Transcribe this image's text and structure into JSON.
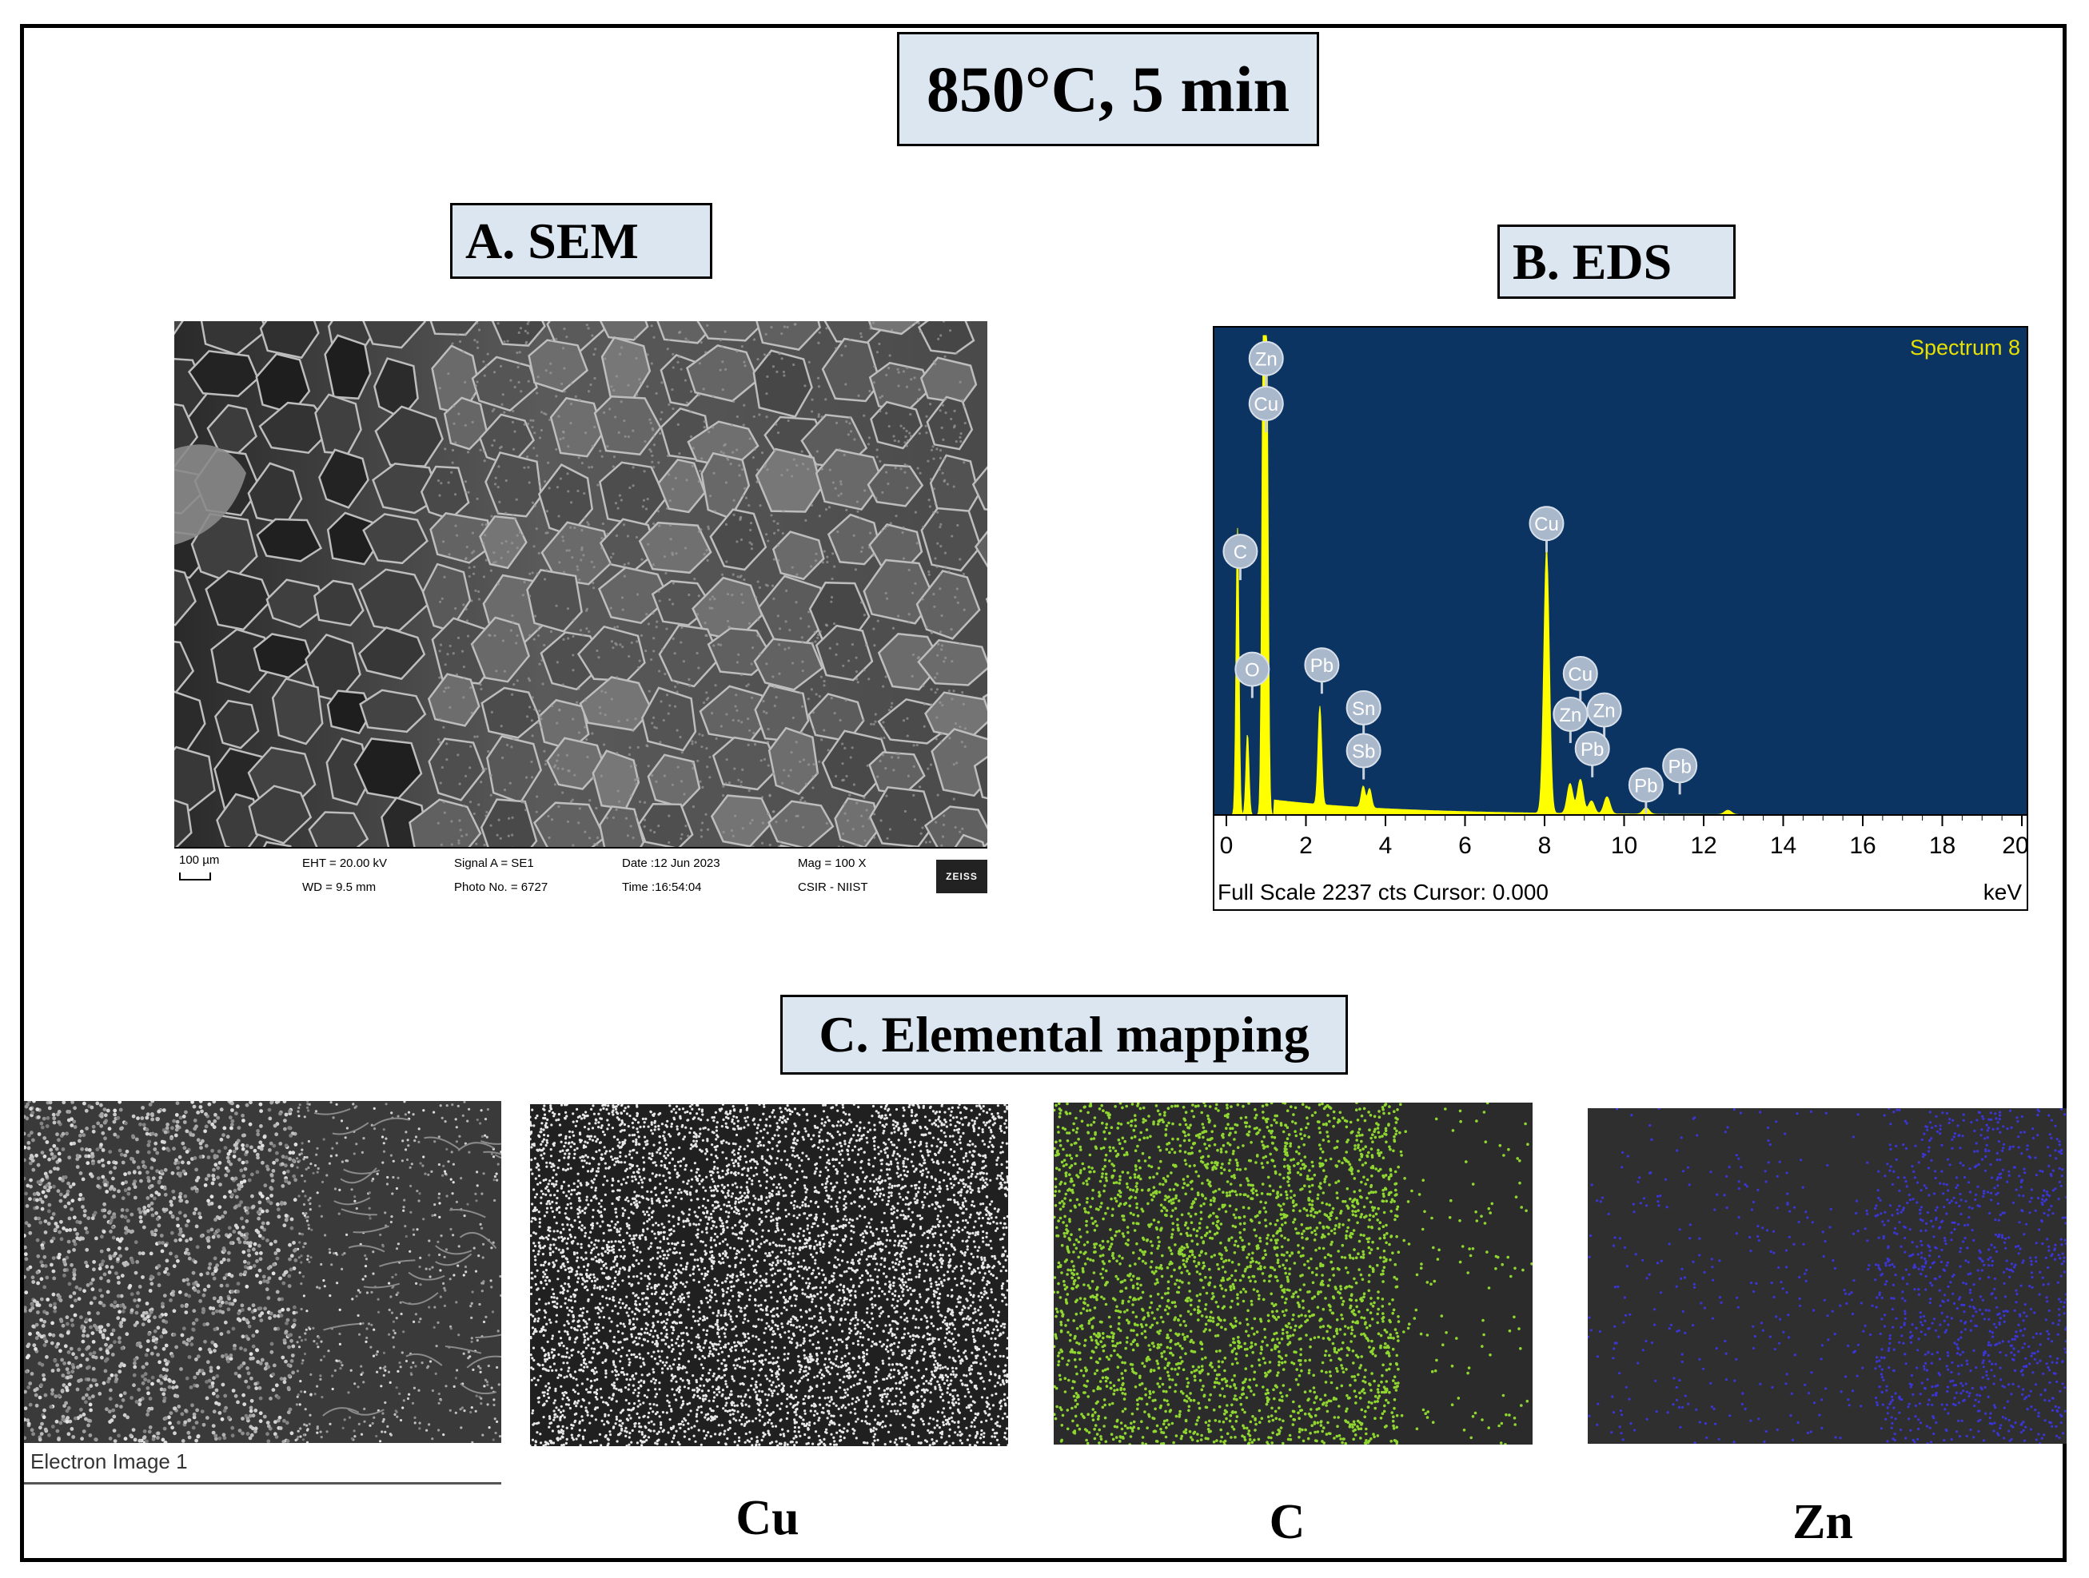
{
  "title": "850°C, 5 min",
  "sem": {
    "label": "A.  SEM",
    "databar": {
      "scale": "100 µm",
      "eht": "EHT = 20.00 kV",
      "wd": "WD =  9.5 mm",
      "signal": "Signal A = SE1",
      "photo": "Photo No. = 6727",
      "date": "Date :12 Jun 2023",
      "time": "Time :16:54:04",
      "mag": "Mag =    100 X",
      "lab": "CSIR - NIIST",
      "logo": "ZEISS"
    }
  },
  "eds": {
    "label": "B.  EDS",
    "spectrum_name": "Spectrum 8",
    "footer": "Full Scale 2237 cts Cursor: 0.000",
    "unit": "keV",
    "colors": {
      "background": "#0b3463",
      "spectrum": "#ffff00",
      "axis_text": "#000000"
    }
  },
  "chart_data": {
    "type": "line",
    "title": "Spectrum 8",
    "xlabel": "keV",
    "xlim": [
      0,
      20
    ],
    "x_ticks": [
      "0",
      "2",
      "4",
      "6",
      "8",
      "10",
      "12",
      "14",
      "16",
      "18",
      "20"
    ],
    "peaks": [
      {
        "x": 0.28,
        "y": 1340,
        "label": "C"
      },
      {
        "x": 0.53,
        "y": 380,
        "label": "O"
      },
      {
        "x": 0.93,
        "y": 2200,
        "label": "Cu"
      },
      {
        "x": 1.01,
        "y": 2237,
        "label": "Zn"
      },
      {
        "x": 2.35,
        "y": 460,
        "label": "Pb"
      },
      {
        "x": 3.44,
        "y": 100,
        "label": "Sn"
      },
      {
        "x": 3.6,
        "y": 90,
        "label": "Sb"
      },
      {
        "x": 8.05,
        "y": 1230,
        "label": "Cu"
      },
      {
        "x": 8.64,
        "y": 140,
        "label": "Zn"
      },
      {
        "x": 8.9,
        "y": 160,
        "label": "Cu"
      },
      {
        "x": 9.57,
        "y": 80,
        "label": "Zn"
      },
      {
        "x": 9.18,
        "y": 60,
        "label": "Pb"
      },
      {
        "x": 10.55,
        "y": 30,
        "label": "Pb"
      },
      {
        "x": 12.61,
        "y": 20,
        "label": "Pb"
      }
    ],
    "markers": [
      {
        "label": "Zn",
        "x": 1.0,
        "y": 2130
      },
      {
        "label": "Cu",
        "x": 1.0,
        "y": 1920
      },
      {
        "label": "C",
        "x": 0.35,
        "y": 1230
      },
      {
        "label": "O",
        "x": 0.65,
        "y": 680
      },
      {
        "label": "Pb",
        "x": 2.4,
        "y": 700
      },
      {
        "label": "Sn",
        "x": 3.45,
        "y": 500
      },
      {
        "label": "Sb",
        "x": 3.45,
        "y": 300
      },
      {
        "label": "Cu",
        "x": 8.05,
        "y": 1360
      },
      {
        "label": "Cu",
        "x": 8.9,
        "y": 660
      },
      {
        "label": "Zn",
        "x": 8.65,
        "y": 470
      },
      {
        "label": "Zn",
        "x": 9.5,
        "y": 490
      },
      {
        "label": "Pb",
        "x": 9.2,
        "y": 310
      },
      {
        "label": "Pb",
        "x": 10.55,
        "y": 140
      },
      {
        "label": "Pb",
        "x": 11.4,
        "y": 230
      }
    ],
    "ylim": [
      0,
      2237
    ]
  },
  "mapping": {
    "label": "C.  Elemental mapping",
    "electron_caption": "Electron Image 1",
    "elements": [
      "Cu",
      "C",
      "Zn"
    ],
    "colors": {
      "Cu": "#e8e8e8",
      "C": "#8fd630",
      "Zn": "#3b35d6"
    }
  }
}
